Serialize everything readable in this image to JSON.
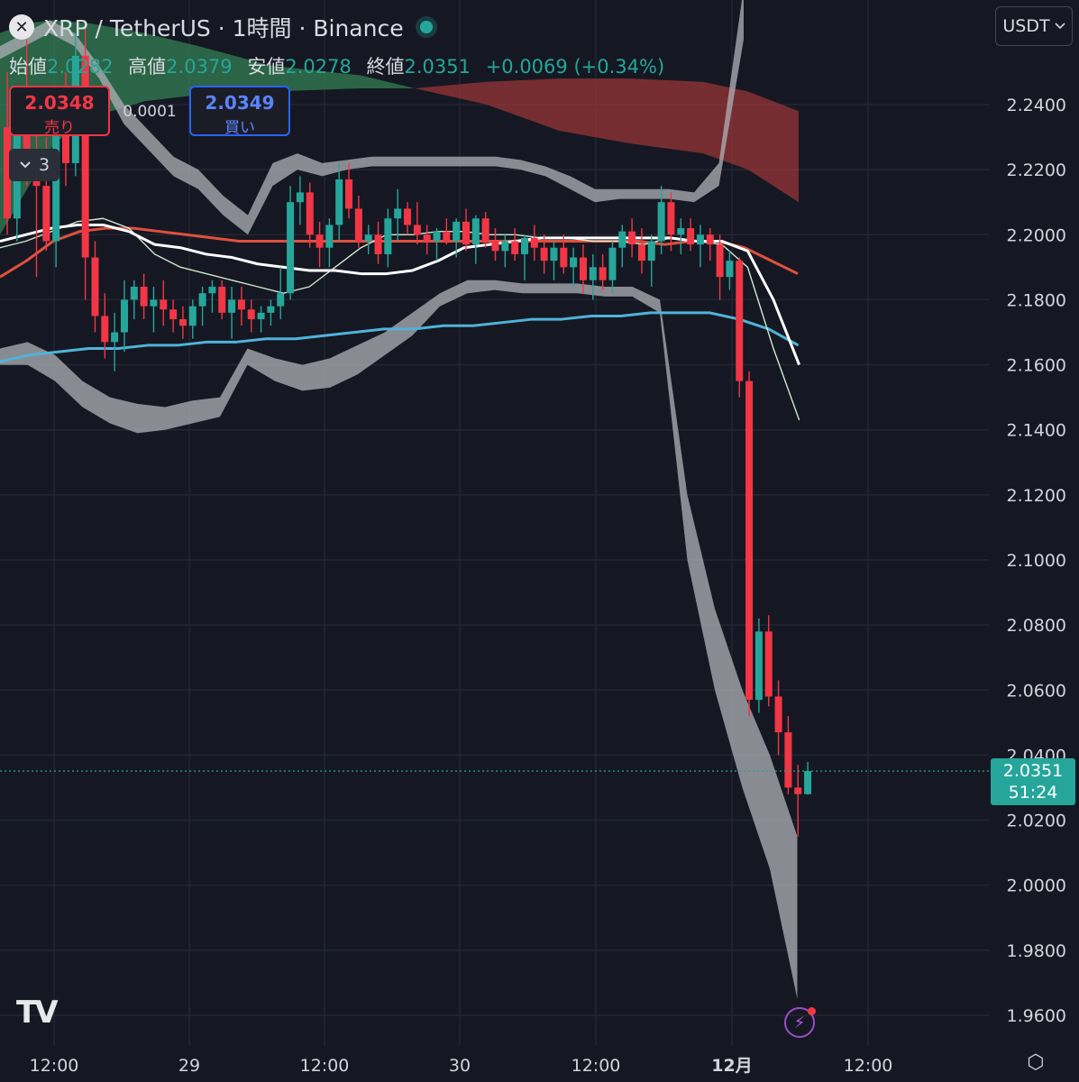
{
  "header": {
    "close_icon": "close-icon",
    "title": "XRP / TetherUS · 1時間 · Binance",
    "ohlc": {
      "open_label": "始値",
      "open": "2.0282",
      "high_label": "高値",
      "high": "2.0379",
      "low_label": "安値",
      "low": "2.0278",
      "close_label": "終値",
      "close": "2.0351",
      "change": "+0.0069 (+0.34%)"
    },
    "currency": "USDT",
    "currency_icon": "chevron-down-icon"
  },
  "trade": {
    "sell_price": "2.0348",
    "sell_label": "売り",
    "spread": "0.0001",
    "buy_price": "2.0349",
    "buy_label": "買い"
  },
  "indicators": {
    "collapse_count": "3",
    "collapse_icon": "chevron-down-icon"
  },
  "price_tag": {
    "price": "2.0351",
    "countdown": "51:24"
  },
  "colors": {
    "up": "#26a69a",
    "down": "#f23645",
    "background": "#151822",
    "grid": "#2a2e39"
  },
  "logo": "TV",
  "chart_data": {
    "type": "candlestick",
    "interval": "1h",
    "y_ticks": [
      "2.2400",
      "2.2200",
      "2.2000",
      "2.1800",
      "2.1600",
      "2.1400",
      "2.1200",
      "2.1000",
      "2.0800",
      "2.0600",
      "2.0400",
      "2.0200",
      "2.0000",
      "1.9800",
      "1.9600"
    ],
    "ylim": [
      1.955,
      2.2725
    ],
    "x_ticks": [
      "12:00",
      "29",
      "12:00",
      "30",
      "12:00",
      "12月",
      "12:00"
    ],
    "candles": [
      [
        2.233,
        2.25,
        2.2,
        2.205
      ],
      [
        2.205,
        2.245,
        2.198,
        2.24
      ],
      [
        2.24,
        2.26,
        2.215,
        2.225
      ],
      [
        2.225,
        2.235,
        2.187,
        2.215
      ],
      [
        2.215,
        2.23,
        2.195,
        2.198
      ],
      [
        2.198,
        2.245,
        2.19,
        2.24
      ],
      [
        2.24,
        2.25,
        2.215,
        2.222
      ],
      [
        2.222,
        2.262,
        2.218,
        2.255
      ],
      [
        2.255,
        2.265,
        2.18,
        2.193
      ],
      [
        2.193,
        2.198,
        2.17,
        2.175
      ],
      [
        2.175,
        2.182,
        2.162,
        2.167
      ],
      [
        2.167,
        2.176,
        2.158,
        2.17
      ],
      [
        2.17,
        2.186,
        2.164,
        2.18
      ],
      [
        2.18,
        2.186,
        2.174,
        2.184
      ],
      [
        2.184,
        2.188,
        2.174,
        2.178
      ],
      [
        2.178,
        2.184,
        2.17,
        2.18
      ],
      [
        2.18,
        2.186,
        2.172,
        2.177
      ],
      [
        2.177,
        2.18,
        2.17,
        2.174
      ],
      [
        2.174,
        2.178,
        2.168,
        2.172
      ],
      [
        2.172,
        2.18,
        2.168,
        2.178
      ],
      [
        2.178,
        2.184,
        2.172,
        2.182
      ],
      [
        2.182,
        2.186,
        2.176,
        2.184
      ],
      [
        2.184,
        2.186,
        2.174,
        2.176
      ],
      [
        2.176,
        2.184,
        2.168,
        2.18
      ],
      [
        2.18,
        2.184,
        2.172,
        2.177
      ],
      [
        2.177,
        2.18,
        2.17,
        2.174
      ],
      [
        2.174,
        2.178,
        2.17,
        2.176
      ],
      [
        2.176,
        2.18,
        2.172,
        2.178
      ],
      [
        2.178,
        2.19,
        2.174,
        2.182
      ],
      [
        2.182,
        2.215,
        2.18,
        2.21
      ],
      [
        2.21,
        2.218,
        2.203,
        2.213
      ],
      [
        2.213,
        2.216,
        2.196,
        2.2
      ],
      [
        2.2,
        2.204,
        2.19,
        2.196
      ],
      [
        2.196,
        2.205,
        2.19,
        2.203
      ],
      [
        2.203,
        2.222,
        2.198,
        2.217
      ],
      [
        2.217,
        2.222,
        2.205,
        2.208
      ],
      [
        2.208,
        2.212,
        2.196,
        2.198
      ],
      [
        2.198,
        2.203,
        2.194,
        2.2
      ],
      [
        2.2,
        2.204,
        2.191,
        2.194
      ],
      [
        2.194,
        2.208,
        2.19,
        2.205
      ],
      [
        2.205,
        2.214,
        2.198,
        2.208
      ],
      [
        2.208,
        2.21,
        2.2,
        2.203
      ],
      [
        2.203,
        2.21,
        2.197,
        2.2
      ],
      [
        2.2,
        2.203,
        2.194,
        2.198
      ],
      [
        2.198,
        2.202,
        2.192,
        2.201
      ],
      [
        2.201,
        2.205,
        2.197,
        2.198
      ],
      [
        2.198,
        2.205,
        2.193,
        2.204
      ],
      [
        2.204,
        2.208,
        2.195,
        2.197
      ],
      [
        2.197,
        2.206,
        2.191,
        2.205
      ],
      [
        2.205,
        2.207,
        2.196,
        2.198
      ],
      [
        2.198,
        2.202,
        2.192,
        2.195
      ],
      [
        2.195,
        2.2,
        2.19,
        2.198
      ],
      [
        2.198,
        2.202,
        2.192,
        2.194
      ],
      [
        2.194,
        2.2,
        2.186,
        2.199
      ],
      [
        2.199,
        2.203,
        2.192,
        2.196
      ],
      [
        2.196,
        2.2,
        2.188,
        2.192
      ],
      [
        2.192,
        2.198,
        2.186,
        2.196
      ],
      [
        2.196,
        2.2,
        2.188,
        2.19
      ],
      [
        2.19,
        2.196,
        2.184,
        2.193
      ],
      [
        2.193,
        2.197,
        2.182,
        2.186
      ],
      [
        2.186,
        2.194,
        2.18,
        2.19
      ],
      [
        2.19,
        2.194,
        2.183,
        2.186
      ],
      [
        2.186,
        2.198,
        2.182,
        2.196
      ],
      [
        2.196,
        2.203,
        2.19,
        2.201
      ],
      [
        2.201,
        2.205,
        2.193,
        2.197
      ],
      [
        2.197,
        2.202,
        2.188,
        2.192
      ],
      [
        2.192,
        2.2,
        2.184,
        2.198
      ],
      [
        2.198,
        2.215,
        2.194,
        2.21
      ],
      [
        2.21,
        2.213,
        2.195,
        2.2
      ],
      [
        2.2,
        2.205,
        2.194,
        2.202
      ],
      [
        2.202,
        2.205,
        2.195,
        2.197
      ],
      [
        2.197,
        2.203,
        2.19,
        2.2
      ],
      [
        2.2,
        2.202,
        2.192,
        2.197
      ],
      [
        2.197,
        2.2,
        2.18,
        2.187
      ],
      [
        2.187,
        2.195,
        2.183,
        2.192
      ],
      [
        2.192,
        2.193,
        2.15,
        2.155
      ],
      [
        2.155,
        2.158,
        2.052,
        2.057
      ],
      [
        2.057,
        2.082,
        2.053,
        2.078
      ],
      [
        2.078,
        2.083,
        2.055,
        2.058
      ],
      [
        2.058,
        2.063,
        2.04,
        2.047
      ],
      [
        2.047,
        2.052,
        2.028,
        2.03
      ],
      [
        2.03,
        2.037,
        2.015,
        2.028
      ],
      [
        2.028,
        2.0379,
        2.0278,
        2.0351
      ]
    ],
    "ma_white": [
      2.198,
      2.2,
      2.202,
      2.203,
      2.203,
      2.201,
      2.197,
      2.196,
      2.194,
      2.193,
      2.191,
      2.19,
      2.189,
      2.189,
      2.188,
      2.188,
      2.189,
      2.192,
      2.196,
      2.197,
      2.198,
      2.199,
      2.199,
      2.199,
      2.199,
      2.199,
      2.199,
      2.198,
      2.198,
      2.195,
      2.18,
      2.16
    ],
    "ma_thin": [
      2.196,
      2.198,
      2.201,
      2.204,
      2.205,
      2.202,
      2.194,
      2.19,
      2.188,
      2.186,
      2.184,
      2.182,
      2.184,
      2.19,
      2.196,
      2.2,
      2.2,
      2.201,
      2.201,
      2.2,
      2.2,
      2.199,
      2.199,
      2.198,
      2.198,
      2.197,
      2.199,
      2.198,
      2.197,
      2.19,
      2.165,
      2.143
    ],
    "ma_red": [
      2.187,
      2.192,
      2.198,
      2.201,
      2.202,
      2.202,
      2.201,
      2.2,
      2.199,
      2.198,
      2.198,
      2.198,
      2.198,
      2.198,
      2.198,
      2.198,
      2.198,
      2.198,
      2.198,
      2.198,
      2.198,
      2.198,
      2.198,
      2.198,
      2.198,
      2.197,
      2.198,
      2.198,
      2.196,
      2.192,
      2.188
    ],
    "ma_blue": [
      2.161,
      2.163,
      2.164,
      2.165,
      2.165,
      2.166,
      2.166,
      2.167,
      2.167,
      2.168,
      2.168,
      2.169,
      2.17,
      2.171,
      2.171,
      2.172,
      2.172,
      2.173,
      2.174,
      2.174,
      2.175,
      2.175,
      2.176,
      2.176,
      2.176,
      2.174,
      2.171,
      2.166
    ],
    "band_upper_top": [
      2.258,
      2.262,
      2.266,
      2.262,
      2.252,
      2.24,
      2.232,
      2.224,
      2.22,
      2.212,
      2.206,
      2.222,
      2.225,
      2.222,
      2.223,
      2.224,
      2.224,
      2.224,
      2.224,
      2.224,
      2.224,
      2.223,
      2.221,
      2.218,
      2.214,
      2.214,
      2.214,
      2.214,
      2.213,
      2.222,
      2.276
    ],
    "band_upper_bot": [
      2.254,
      2.258,
      2.262,
      2.258,
      2.248,
      2.234,
      2.226,
      2.218,
      2.214,
      2.206,
      2.2,
      2.215,
      2.22,
      2.218,
      2.22,
      2.221,
      2.221,
      2.221,
      2.221,
      2.221,
      2.221,
      2.22,
      2.218,
      2.214,
      2.21,
      2.211,
      2.211,
      2.211,
      2.21,
      2.215,
      2.26
    ],
    "band_lower_top": [
      2.165,
      2.167,
      2.163,
      2.155,
      2.15,
      2.148,
      2.147,
      2.149,
      2.15,
      2.165,
      2.162,
      2.16,
      2.162,
      2.166,
      2.17,
      2.176,
      2.182,
      2.186,
      2.186,
      2.185,
      2.185,
      2.185,
      2.184,
      2.184,
      2.18,
      2.12,
      2.085,
      2.06,
      2.04,
      2.015
    ],
    "band_lower_bot": [
      2.16,
      2.16,
      2.155,
      2.147,
      2.142,
      2.139,
      2.14,
      2.142,
      2.144,
      2.16,
      2.155,
      2.152,
      2.153,
      2.157,
      2.163,
      2.169,
      2.178,
      2.182,
      2.183,
      2.182,
      2.182,
      2.182,
      2.181,
      2.181,
      2.176,
      2.1,
      2.06,
      2.03,
      2.005,
      1.965
    ],
    "cloud_green": {
      "x": [
        0,
        30,
        60,
        100,
        160,
        220,
        300,
        400,
        460
      ],
      "top": [
        2.262,
        2.265,
        2.266,
        2.265,
        2.262,
        2.258,
        2.252,
        2.249,
        2.245
      ],
      "bot": [
        2.2,
        2.214,
        2.228,
        2.236,
        2.241,
        2.243,
        2.244,
        2.245,
        2.245
      ]
    },
    "cloud_red": {
      "x": [
        460,
        540,
        620,
        700,
        780,
        830,
        886
      ],
      "top": [
        2.245,
        2.247,
        2.248,
        2.248,
        2.247,
        2.244,
        2.238
      ],
      "bot": [
        2.245,
        2.24,
        2.232,
        2.228,
        2.225,
        2.22,
        2.21
      ]
    },
    "last_price": 2.0351
  }
}
